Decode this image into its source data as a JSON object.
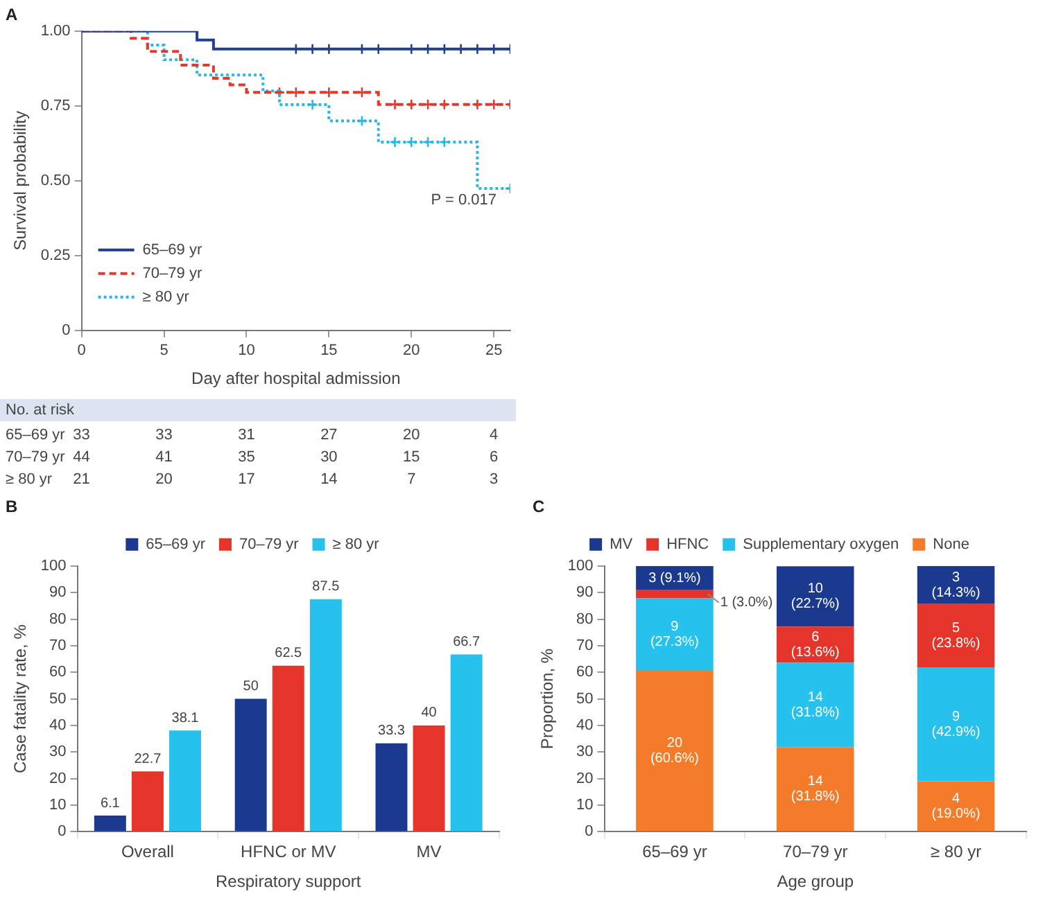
{
  "chart_data": [
    {
      "type": "step",
      "title": "A",
      "xlabel": "Day after hospital admission",
      "ylabel": "Survival probability",
      "xlim": [
        0,
        26
      ],
      "xticks": [
        0,
        5,
        10,
        15,
        20,
        25
      ],
      "ylim": [
        0,
        1
      ],
      "yticks": [
        {
          "value": 0,
          "label": "0"
        },
        {
          "value": 0.25,
          "label": "0.25"
        },
        {
          "value": 0.5,
          "label": "0.50"
        },
        {
          "value": 0.75,
          "label": "0.75"
        },
        {
          "value": 1,
          "label": "1.00"
        }
      ],
      "grid": false,
      "legend": "bottom left",
      "annotations": [
        "P = 0.017"
      ],
      "series": [
        {
          "name": "65–69 yr",
          "color": "#1f3f8f",
          "line_style": "solid",
          "x": [
            0,
            7,
            8,
            26
          ],
          "values": [
            1,
            0.97,
            0.94,
            0.94
          ]
        },
        {
          "name": "70–79 yr",
          "color": "#e03a2c",
          "line_style": "dashed",
          "x": [
            0,
            3,
            4,
            6,
            8,
            9,
            10,
            18,
            26
          ],
          "values": [
            1,
            0.976,
            0.932,
            0.886,
            0.842,
            0.82,
            0.795,
            0.755,
            0.755
          ]
        },
        {
          "name": "≥ 80 yr",
          "color": "#2bb7e6",
          "line_style": "dotted",
          "x": [
            0,
            4,
            5,
            7,
            11,
            12,
            15,
            18,
            24,
            26
          ],
          "values": [
            1,
            0.953,
            0.904,
            0.853,
            0.8,
            0.754,
            0.7,
            0.629,
            0.474,
            0.474
          ]
        },
        {
          "type": "scatter",
          "marker": "cross",
          "color": "#1f3f8f",
          "x": [
            13,
            14,
            15,
            17,
            18,
            20,
            21,
            22,
            23,
            24,
            25,
            26
          ],
          "values": [
            0.94,
            0.94,
            0.94,
            0.94,
            0.94,
            0.94,
            0.94,
            0.94,
            0.94,
            0.94,
            0.94,
            0.94
          ]
        },
        {
          "type": "scatter",
          "marker": "cross",
          "color": "#e03a2c",
          "x": [
            12,
            13,
            15,
            17,
            19,
            20,
            21,
            22,
            24,
            25,
            26
          ],
          "values": [
            0.795,
            0.795,
            0.795,
            0.795,
            0.755,
            0.755,
            0.755,
            0.755,
            0.755,
            0.755,
            0.755
          ]
        },
        {
          "type": "scatter",
          "marker": "cross",
          "color": "#2bb7e6",
          "x": [
            14,
            17,
            19,
            20,
            21,
            22,
            26
          ],
          "values": [
            0.754,
            0.7,
            0.629,
            0.629,
            0.629,
            0.629,
            0.474
          ]
        }
      ]
    },
    {
      "type": "other",
      "title": "No. at risk",
      "y_categories": [
        "65–69 yr",
        "70–79 yr",
        "≥ 80 yr"
      ],
      "annotations": [
        "33",
        "33",
        "31",
        "27",
        "20",
        "4",
        "44",
        "41",
        "35",
        "30",
        "15",
        "6",
        "21",
        "20",
        "17",
        "14",
        "7",
        "3"
      ]
    },
    {
      "type": "bar",
      "title": "B",
      "xlabel": "Respiratory support",
      "ylabel": "Case fatality rate, %",
      "categories": [
        "Overall",
        "HFNC or MV",
        "MV"
      ],
      "ylim": [
        0,
        100
      ],
      "yticks": [
        0,
        10,
        20,
        30,
        40,
        50,
        60,
        70,
        80,
        90,
        100
      ],
      "grid": false,
      "legend": "top",
      "data_labels": true,
      "series": [
        {
          "name": "65–69 yr",
          "color": "#1b3a8f",
          "values": [
            6.1,
            50.0,
            33.3
          ]
        },
        {
          "name": "70–79 yr",
          "color": "#e5352a",
          "values": [
            22.7,
            62.5,
            40.0
          ]
        },
        {
          "name": "≥ 80 yr",
          "color": "#27c1ee",
          "values": [
            38.1,
            87.5,
            66.7
          ]
        }
      ]
    },
    {
      "type": "bar",
      "title": "C",
      "xlabel": "Age group",
      "ylabel": "Proportion, %",
      "categories": [
        "65–69 yr",
        "70–79 yr",
        "≥ 80 yr"
      ],
      "ylim": [
        0,
        100
      ],
      "yticks": [
        0,
        10,
        20,
        30,
        40,
        50,
        60,
        70,
        80,
        90,
        100
      ],
      "grid": false,
      "legend": "top",
      "stacked": true,
      "series": [
        {
          "name": "None",
          "color": "#f47b2a",
          "values": [
            60.6,
            31.8,
            19.0
          ],
          "value_labels": [
            "20\n(60.6%)",
            "14\n(31.8%)",
            "4\n(19.0%)"
          ]
        },
        {
          "name": "Supplementary oxygen",
          "color": "#27c1ee",
          "values": [
            27.3,
            31.8,
            42.9
          ],
          "value_labels": [
            "9\n(27.3%)",
            "14\n(31.8%)",
            "9\n(42.9%)"
          ]
        },
        {
          "name": "HFNC",
          "color": "#e5352a",
          "values": [
            3.0,
            13.6,
            23.8
          ],
          "value_labels": [
            "1\n(3.0%)",
            "6\n(13.6%)",
            "5\n(23.8%)"
          ]
        },
        {
          "name": "MV",
          "color": "#1b3a8f",
          "values": [
            9.1,
            22.7,
            14.3
          ],
          "value_labels": [
            "3\n(9.1%)",
            "10\n(22.7%)",
            "3\n(14.3%)"
          ]
        }
      ]
    }
  ]
}
